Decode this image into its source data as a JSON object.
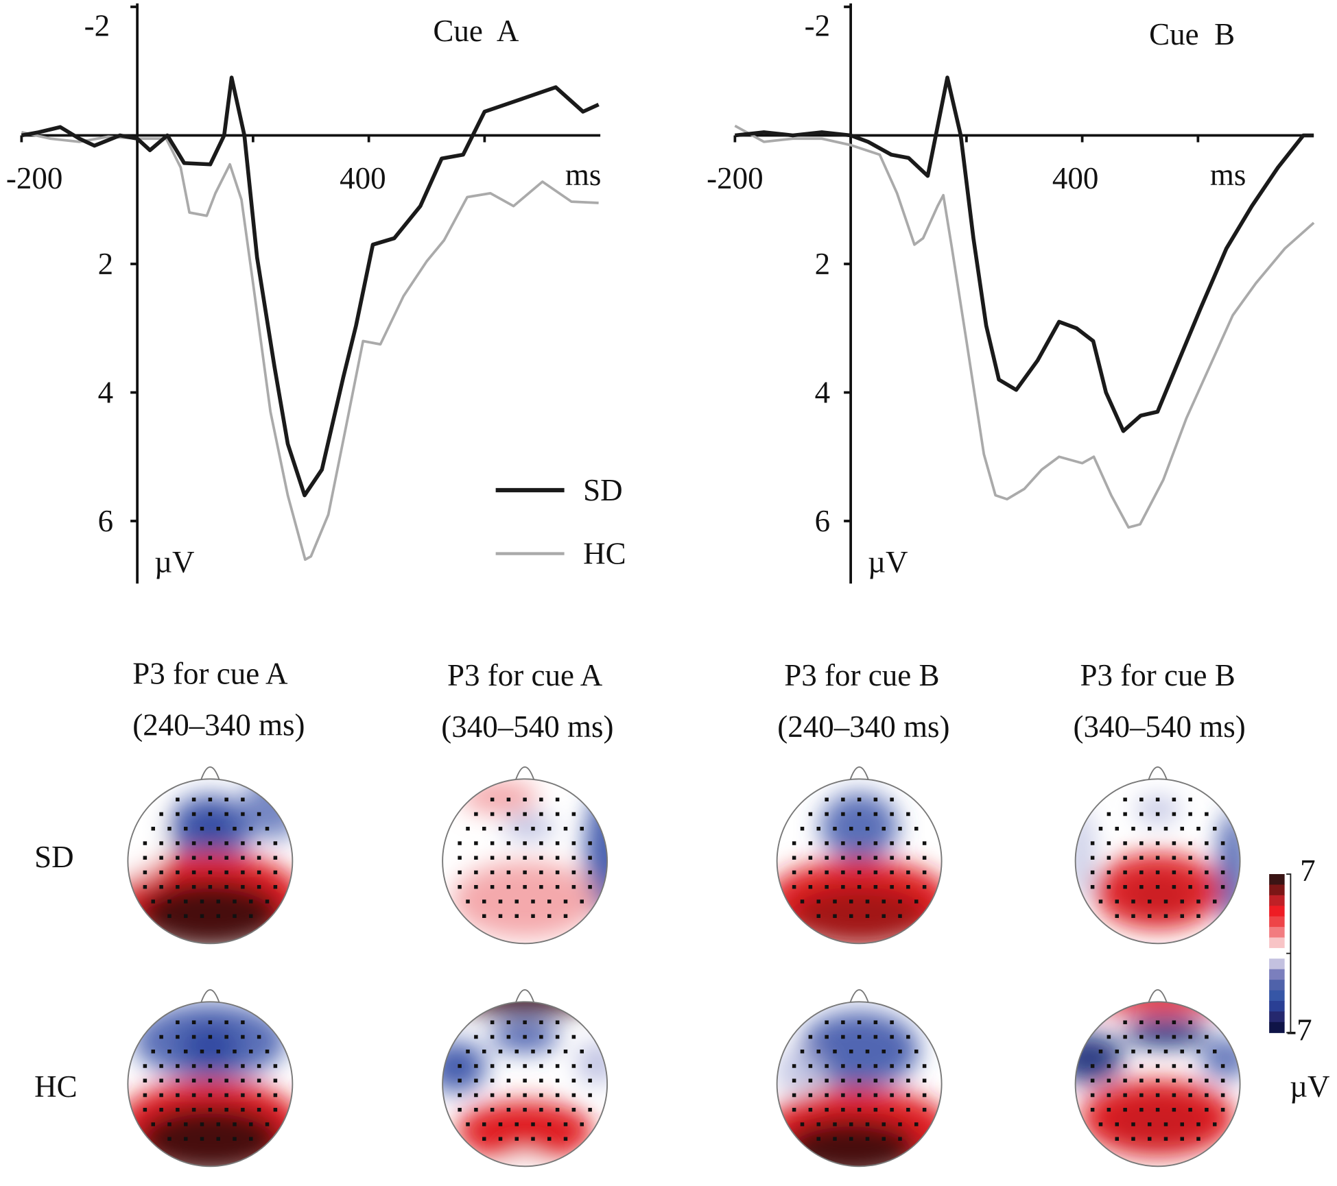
{
  "chart_data": [
    {
      "type": "line",
      "title": "Cue  A",
      "xlabel": "ms",
      "ylabel": "µV",
      "xlim": [
        -200,
        800
      ],
      "ylim": [
        -2,
        7
      ],
      "y_inverted": true,
      "x_ticks": [
        -200,
        0,
        200,
        400,
        600
      ],
      "x_tick_labels": [
        "-200",
        "400"
      ],
      "y_tick_labels": [
        "-2",
        "2",
        "4",
        "6"
      ],
      "y_ticks": [
        -2,
        2,
        4,
        6
      ],
      "legend": {
        "placement": "bottom-right",
        "entries": [
          "SD",
          "HC"
        ]
      },
      "series": [
        {
          "name": "SD",
          "color": "#1a1a1a",
          "x": [
            -200,
            -170,
            -133,
            -100,
            -74,
            -30,
            0,
            22,
            52,
            81,
            126,
            150,
            163,
            185,
            207,
            237,
            260,
            289,
            319,
            356,
            378,
            407,
            444,
            489,
            526,
            563,
            600,
            652,
            723,
            770,
            797
          ],
          "y": [
            0,
            -0.05,
            -0.13,
            0.05,
            0.16,
            0,
            0.05,
            0.23,
            0,
            0.43,
            0.45,
            0,
            -0.9,
            0,
            1.9,
            3.6,
            4.8,
            5.6,
            5.2,
            3.76,
            2.96,
            1.7,
            1.6,
            1.1,
            0.36,
            0.3,
            -0.37,
            -0.53,
            -0.75,
            -0.37,
            -0.48
          ]
        },
        {
          "name": "HC",
          "color": "#aaaaaa",
          "x": [
            -200,
            -150,
            -100,
            -50,
            0,
            50,
            75,
            90,
            120,
            135,
            160,
            180,
            200,
            230,
            260,
            290,
            300,
            330,
            360,
            390,
            420,
            460,
            500,
            530,
            570,
            610,
            650,
            700,
            750,
            797
          ],
          "y": [
            -0.05,
            0.05,
            0.1,
            0.02,
            0.05,
            0.05,
            0.5,
            1.2,
            1.25,
            0.9,
            0.45,
            1.0,
            2.3,
            4.3,
            5.6,
            6.6,
            6.55,
            5.9,
            4.56,
            3.2,
            3.25,
            2.5,
            1.96,
            1.63,
            0.96,
            0.9,
            1.1,
            0.72,
            1.03,
            1.05
          ]
        }
      ]
    },
    {
      "type": "line",
      "title": "Cue  B",
      "xlabel": "ms",
      "ylabel": "µV",
      "xlim": [
        -200,
        800
      ],
      "ylim": [
        -2,
        7
      ],
      "y_inverted": true,
      "x_ticks": [
        -200,
        0,
        200,
        400,
        600
      ],
      "x_tick_labels": [
        "-200",
        "400"
      ],
      "y_tick_labels": [
        "-2",
        "2",
        "4",
        "6"
      ],
      "y_ticks": [
        -2,
        2,
        4,
        6
      ],
      "series": [
        {
          "name": "SD",
          "color": "#1a1a1a",
          "x": [
            -200,
            -150,
            -100,
            -50,
            0,
            30,
            70,
            100,
            133,
            167,
            190,
            212,
            234,
            256,
            286,
            323,
            360,
            390,
            419,
            441,
            471,
            501,
            530,
            567,
            604,
            649,
            693,
            738,
            782,
            800
          ],
          "y": [
            0,
            -0.05,
            0,
            -0.05,
            0,
            0.1,
            0.3,
            0.35,
            0.63,
            -0.9,
            0,
            1.6,
            2.96,
            3.8,
            3.96,
            3.5,
            2.9,
            3.0,
            3.2,
            4.0,
            4.6,
            4.36,
            4.3,
            3.5,
            2.7,
            1.76,
            1.1,
            0.5,
            0,
            0
          ]
        },
        {
          "name": "HC",
          "color": "#aaaaaa",
          "x": [
            -200,
            -150,
            -100,
            -50,
            0,
            50,
            80,
            110,
            125,
            150,
            160,
            175,
            200,
            230,
            250,
            270,
            300,
            330,
            360,
            400,
            420,
            450,
            480,
            500,
            540,
            580,
            620,
            660,
            700,
            750,
            800
          ],
          "y": [
            -0.15,
            0.1,
            0.05,
            0.05,
            0.15,
            0.3,
            0.9,
            1.7,
            1.6,
            1.1,
            0.93,
            1.76,
            3.2,
            4.96,
            5.6,
            5.66,
            5.5,
            5.2,
            5.0,
            5.1,
            5.0,
            5.6,
            6.1,
            6.05,
            5.36,
            4.4,
            3.6,
            2.8,
            2.3,
            1.76,
            1.36
          ]
        }
      ]
    }
  ],
  "topomaps": {
    "columns": [
      {
        "title": "P3 for cue A",
        "window": "(240–340 ms)"
      },
      {
        "title": "P3 for cue A",
        "window": "(340–540 ms)"
      },
      {
        "title": "P3 for cue B",
        "window": "(240–340 ms)"
      },
      {
        "title": "P3 for cue B",
        "window": "(340–540 ms)"
      }
    ],
    "rows": [
      "SD",
      "HC"
    ],
    "colorbar": {
      "max_label": "7",
      "min_label": "-7",
      "unit": "µV",
      "range": [
        -7,
        7
      ],
      "colors": [
        "#3a1414",
        "#7c1616",
        "#bf2026",
        "#ee1c24",
        "#ee4448",
        "#f27c80",
        "#f8c4c6",
        "#ffffff",
        "#c3c1e0",
        "#7b7fbd",
        "#4f62aa",
        "#3656a6",
        "#2a3f94",
        "#25286e",
        "#0f1447"
      ]
    }
  }
}
